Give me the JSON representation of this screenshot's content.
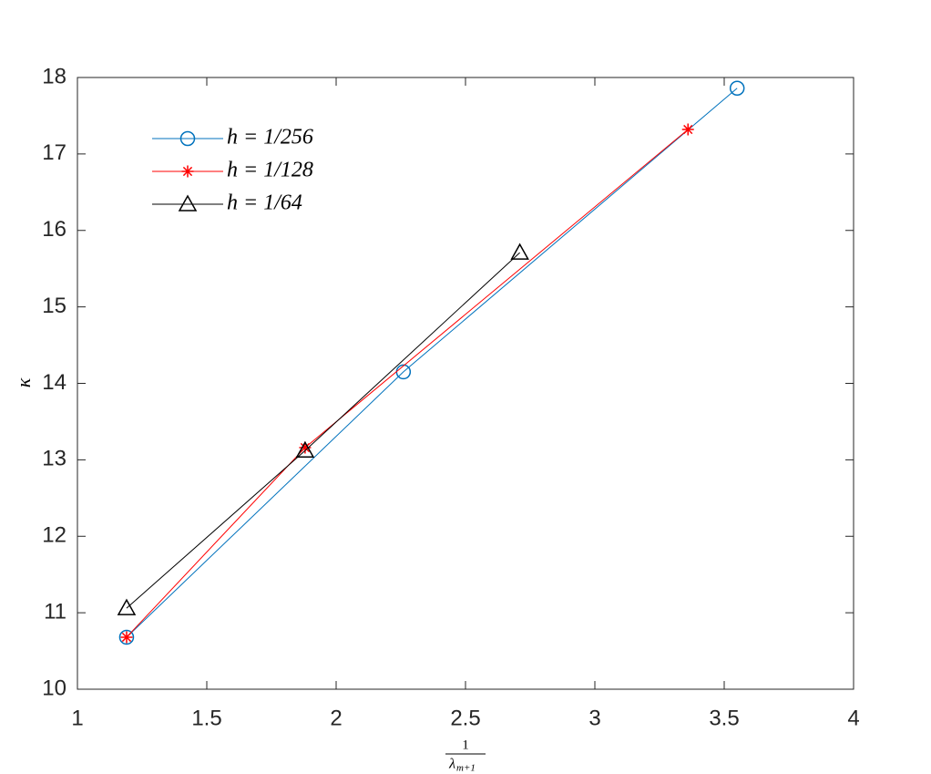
{
  "chart_data": {
    "type": "line",
    "xlabel_numerator": "1",
    "xlabel_denominator": "λ",
    "xlabel_subscript": "m+1",
    "ylabel": "κ",
    "xlim": [
      1,
      4
    ],
    "xticks": [
      1,
      1.5,
      2,
      2.5,
      3,
      3.5,
      4
    ],
    "ylim": [
      10,
      18
    ],
    "yticks": [
      10,
      11,
      12,
      13,
      14,
      15,
      16,
      17,
      18
    ],
    "grid": false,
    "legend": "upper-left",
    "series": [
      {
        "name": "h = 1/256",
        "color": "#0072BD",
        "marker": "circle",
        "x": [
          1.19,
          2.26,
          3.55
        ],
        "values": [
          10.68,
          14.15,
          17.86
        ]
      },
      {
        "name": "h = 1/128",
        "color": "#FF0000",
        "marker": "star",
        "x": [
          1.19,
          1.88,
          3.36
        ],
        "values": [
          10.68,
          13.16,
          17.32
        ]
      },
      {
        "name": "h = 1/64",
        "color": "#000000",
        "marker": "triangle",
        "x": [
          1.19,
          1.88,
          2.71
        ],
        "values": [
          11.06,
          13.12,
          15.71
        ]
      }
    ]
  }
}
